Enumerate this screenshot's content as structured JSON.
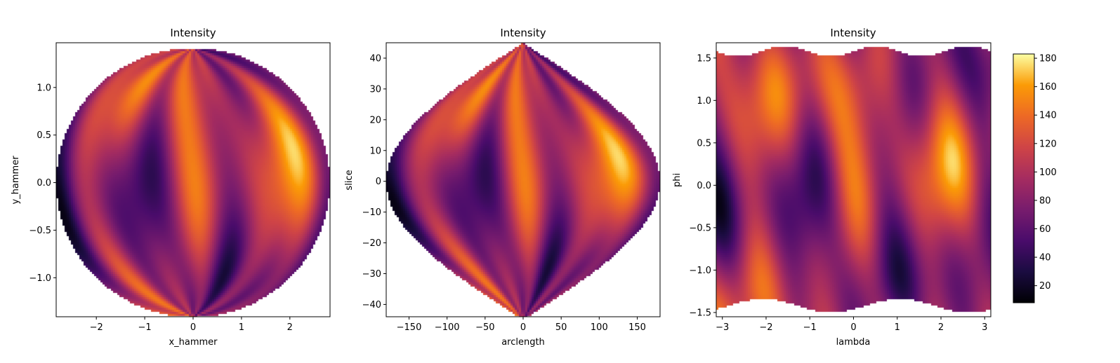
{
  "chart_data": [
    {
      "type": "heatmap",
      "title": "Intensity",
      "xlabel": "x_hammer",
      "ylabel": "y_hammer",
      "xlim": [
        -2.83,
        2.83
      ],
      "ylim": [
        -1.41,
        1.47
      ],
      "xticks": [
        -2,
        -1,
        0,
        1,
        2
      ],
      "xtick_labels": [
        "−2",
        "−1",
        "0",
        "1",
        "2"
      ],
      "yticks": [
        -1.0,
        -0.5,
        0.0,
        0.5,
        1.0
      ],
      "ytick_labels": [
        "−1.0",
        "−0.5",
        "0.0",
        "0.5",
        "1.0"
      ],
      "projection": "hammer (disk)",
      "colormap": "inferno",
      "value_range": [
        8,
        183
      ]
    },
    {
      "type": "heatmap",
      "title": "Intensity",
      "xlabel": "arclength",
      "ylabel": "slice",
      "xlim": [
        -180,
        180
      ],
      "ylim": [
        -44,
        45
      ],
      "xticks": [
        -150,
        -100,
        -50,
        0,
        50,
        100,
        150
      ],
      "xtick_labels": [
        "−150",
        "−100",
        "−50",
        "0",
        "50",
        "100",
        "150"
      ],
      "yticks": [
        -40,
        -30,
        -20,
        -10,
        0,
        10,
        20,
        30,
        40
      ],
      "ytick_labels": [
        "−40",
        "−30",
        "−20",
        "−10",
        "0",
        "10",
        "20",
        "30",
        "40"
      ],
      "projection": "sinusoidal (lens)",
      "colormap": "inferno",
      "value_range": [
        8,
        183
      ]
    },
    {
      "type": "heatmap",
      "title": "Intensity",
      "xlabel": "lambda",
      "ylabel": "phi",
      "xlim": [
        -3.14,
        3.14
      ],
      "ylim": [
        -1.55,
        1.68
      ],
      "xticks": [
        -3,
        -2,
        -1,
        0,
        1,
        2,
        3
      ],
      "xtick_labels": [
        "−3",
        "−2",
        "−1",
        "0",
        "1",
        "2",
        "3"
      ],
      "yticks": [
        -1.5,
        -1.0,
        -0.5,
        0.0,
        0.5,
        1.0,
        1.5
      ],
      "ytick_labels": [
        "−1.5",
        "−1.0",
        "−0.5",
        "0.0",
        "0.5",
        "1.0",
        "1.5"
      ],
      "projection": "equirectangular",
      "colormap": "inferno",
      "value_range": [
        8,
        183
      ]
    }
  ],
  "colorbar": {
    "ticks": [
      20,
      40,
      60,
      80,
      100,
      120,
      140,
      160,
      180
    ],
    "tick_labels": [
      "20",
      "40",
      "60",
      "80",
      "100",
      "120",
      "140",
      "160",
      "180"
    ],
    "range": [
      8,
      183
    ],
    "colormap": "inferno"
  }
}
